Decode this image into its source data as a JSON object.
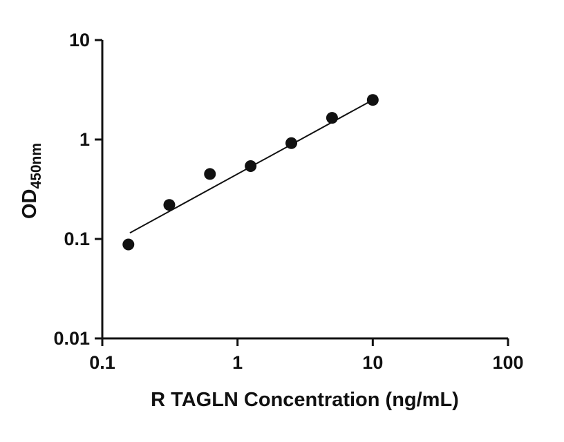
{
  "chart_data": {
    "type": "scatter",
    "title": "",
    "xlabel": "R TAGLN Concentration (ng/mL)",
    "ylabel_main": "OD",
    "ylabel_sub": "450nm",
    "x_scale": "log",
    "y_scale": "log",
    "xlim": [
      0.1,
      100
    ],
    "ylim": [
      0.01,
      10
    ],
    "xticks": [
      0.1,
      1,
      10,
      100
    ],
    "xtick_labels": [
      "0.1",
      "1",
      "10",
      "100"
    ],
    "yticks": [
      10,
      1,
      0.1,
      0.01
    ],
    "ytick_labels": [
      "10",
      "1",
      "0.1",
      "0.01"
    ],
    "x": [
      0.156,
      0.313,
      0.625,
      1.25,
      2.5,
      5,
      10
    ],
    "y": [
      0.088,
      0.22,
      0.45,
      0.54,
      0.92,
      1.65,
      2.5
    ],
    "trendline": {
      "x1": 0.16,
      "y1": 0.115,
      "x2": 10,
      "y2": 2.5
    },
    "grid": "off",
    "legend": "none",
    "point_color": "#111111",
    "line_color": "#111111",
    "axis_color": "#111111",
    "background_color": "#ffffff"
  }
}
